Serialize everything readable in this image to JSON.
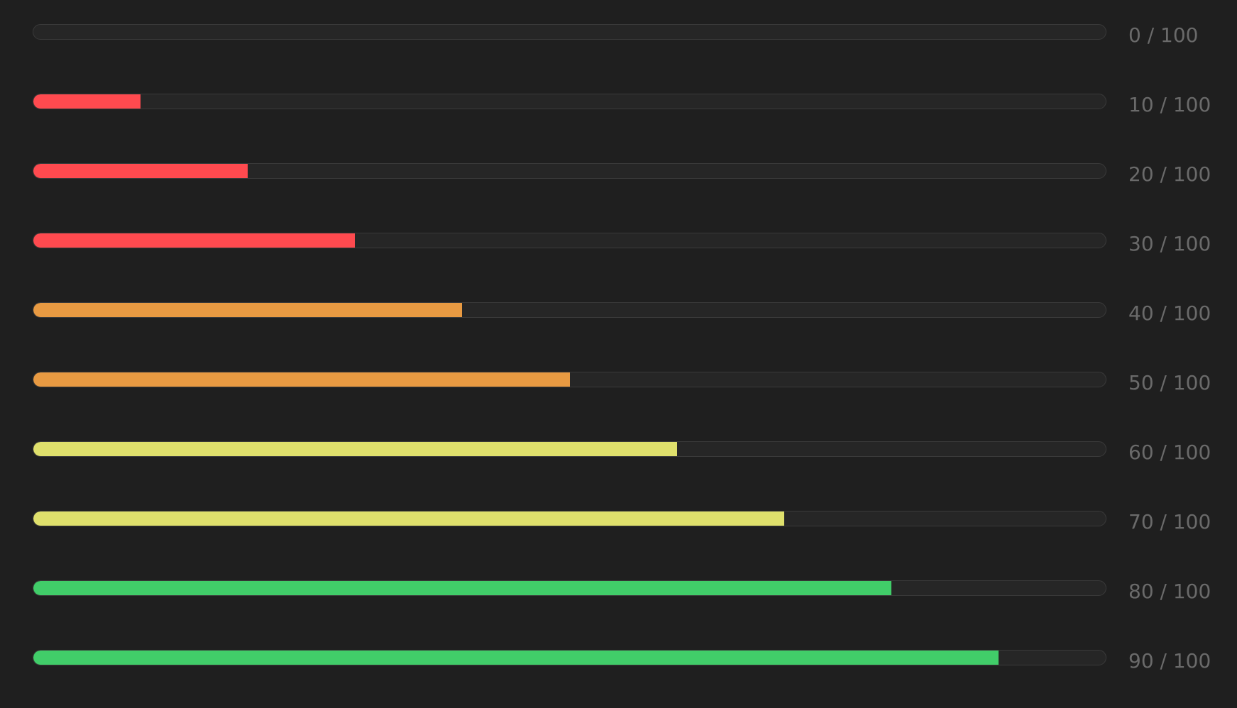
{
  "colors": {
    "background": "#1f1f1f",
    "track": "#262626",
    "track_border": "#3a3a3a",
    "label": "#6a6a6a",
    "red": "#ff4a4f",
    "orange": "#e89a42",
    "yellow": "#dfe06c",
    "green": "#41cd69"
  },
  "meters": [
    {
      "value": 0,
      "max": 100,
      "label": "0 / 100",
      "color": "red"
    },
    {
      "value": 10,
      "max": 100,
      "label": "10 / 100",
      "color": "red"
    },
    {
      "value": 20,
      "max": 100,
      "label": "20 / 100",
      "color": "red"
    },
    {
      "value": 30,
      "max": 100,
      "label": "30 / 100",
      "color": "red"
    },
    {
      "value": 40,
      "max": 100,
      "label": "40 / 100",
      "color": "orange"
    },
    {
      "value": 50,
      "max": 100,
      "label": "50 / 100",
      "color": "orange"
    },
    {
      "value": 60,
      "max": 100,
      "label": "60 / 100",
      "color": "yellow"
    },
    {
      "value": 70,
      "max": 100,
      "label": "70 / 100",
      "color": "yellow"
    },
    {
      "value": 80,
      "max": 100,
      "label": "80 / 100",
      "color": "green"
    },
    {
      "value": 90,
      "max": 100,
      "label": "90 / 100",
      "color": "green"
    }
  ]
}
